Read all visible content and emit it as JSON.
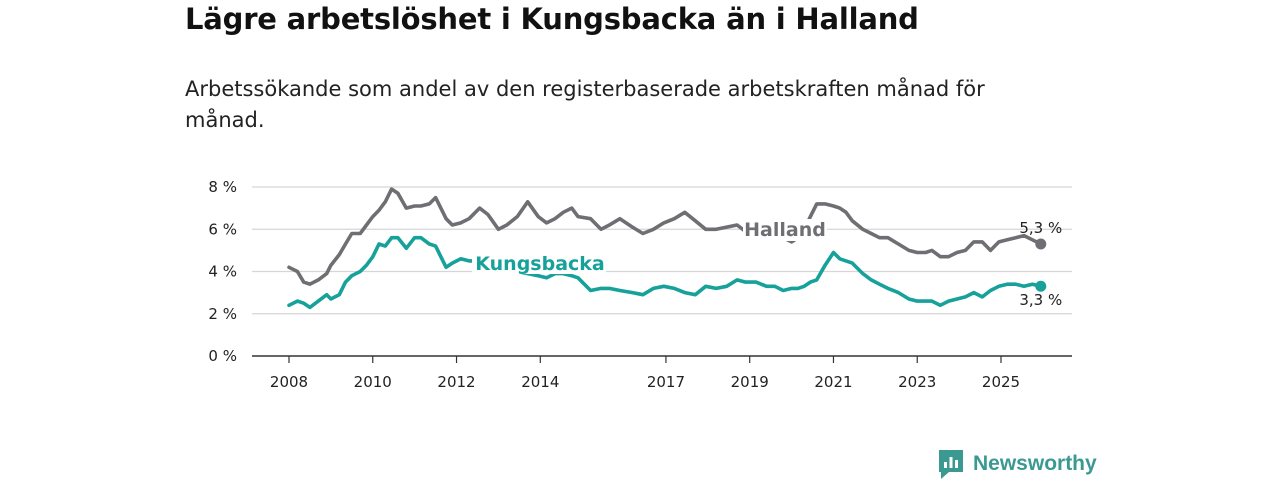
{
  "title": "Lägre arbetslöshet i Kungsbacka än i Halland",
  "subtitle": "Arbetssökande som andel av den registerbaserade arbetskraften månad för månad.",
  "brand": {
    "name": "Newsworthy",
    "color": "#3a9a92",
    "icon": "bar-chart-speech-bubble-icon"
  },
  "chart_data": {
    "type": "line",
    "title": "Lägre arbetslöshet i Kungsbacka än i Halland",
    "subtitle": "Arbetssökande som andel av den registerbaserade arbetskraften månad för månad.",
    "xlabel": "",
    "ylabel": "",
    "xlim": [
      2008.0,
      2026.6
    ],
    "ylim": [
      0,
      8
    ],
    "grid": true,
    "x_ticks": [
      2008,
      2010,
      2012,
      2014,
      2017,
      2019,
      2021,
      2023,
      2025
    ],
    "x_tick_labels": [
      "2008",
      "2010",
      "2012",
      "2014",
      "2017",
      "2019",
      "2021",
      "2023",
      "2025"
    ],
    "y_ticks": [
      0,
      2,
      4,
      6,
      8
    ],
    "y_tick_labels": [
      "0 %",
      "2 %",
      "4 %",
      "6 %",
      "8 %"
    ],
    "series": [
      {
        "name": "Halland",
        "color": "#6f6e73",
        "end_label": "5,3 %",
        "x": [
          2008.0,
          2008.2,
          2008.35,
          2008.5,
          2008.7,
          2008.9,
          2009.0,
          2009.2,
          2009.35,
          2009.5,
          2009.7,
          2009.85,
          2010.0,
          2010.15,
          2010.3,
          2010.45,
          2010.6,
          2010.8,
          2011.0,
          2011.15,
          2011.35,
          2011.5,
          2011.75,
          2011.9,
          2012.1,
          2012.3,
          2012.55,
          2012.75,
          2013.0,
          2013.2,
          2013.45,
          2013.7,
          2013.95,
          2014.15,
          2014.35,
          2014.55,
          2014.75,
          2014.9,
          2015.2,
          2015.45,
          2015.65,
          2015.9,
          2016.2,
          2016.45,
          2016.7,
          2016.95,
          2017.2,
          2017.45,
          2017.7,
          2017.95,
          2018.2,
          2018.45,
          2018.7,
          2018.9,
          2019.15,
          2019.4,
          2019.6,
          2019.8,
          2020.0,
          2020.15,
          2020.3,
          2020.45,
          2020.6,
          2020.8,
          2021.0,
          2021.15,
          2021.3,
          2021.45,
          2021.7,
          2021.9,
          2022.1,
          2022.3,
          2022.55,
          2022.8,
          2023.0,
          2023.2,
          2023.35,
          2023.55,
          2023.75,
          2023.95,
          2024.15,
          2024.35,
          2024.55,
          2024.75,
          2024.95,
          2025.15,
          2025.35,
          2025.55,
          2025.75,
          2025.95
        ],
        "values": [
          4.2,
          4.0,
          3.5,
          3.4,
          3.6,
          3.9,
          4.3,
          4.8,
          5.3,
          5.8,
          5.8,
          6.2,
          6.6,
          6.9,
          7.3,
          7.9,
          7.7,
          7.0,
          7.1,
          7.1,
          7.2,
          7.5,
          6.5,
          6.2,
          6.3,
          6.5,
          7.0,
          6.7,
          6.0,
          6.2,
          6.6,
          7.3,
          6.6,
          6.3,
          6.5,
          6.8,
          7.0,
          6.6,
          6.5,
          6.0,
          6.2,
          6.5,
          6.1,
          5.8,
          6.0,
          6.3,
          6.5,
          6.8,
          6.4,
          6.0,
          6.0,
          6.1,
          6.2,
          5.9,
          5.6,
          5.8,
          5.8,
          5.6,
          5.4,
          5.6,
          6.0,
          6.6,
          7.2,
          7.2,
          7.1,
          7.0,
          6.8,
          6.4,
          6.0,
          5.8,
          5.6,
          5.6,
          5.3,
          5.0,
          4.9,
          4.9,
          5.0,
          4.7,
          4.7,
          4.9,
          5.0,
          5.4,
          5.4,
          5.0,
          5.4,
          5.5,
          5.6,
          5.7,
          5.5,
          5.3
        ]
      },
      {
        "name": "Kungsbacka",
        "color": "#16a19a",
        "end_label": "3,3 %",
        "x": [
          2008.0,
          2008.2,
          2008.35,
          2008.5,
          2008.7,
          2008.9,
          2009.0,
          2009.2,
          2009.35,
          2009.5,
          2009.7,
          2009.85,
          2010.0,
          2010.15,
          2010.3,
          2010.45,
          2010.6,
          2010.8,
          2011.0,
          2011.15,
          2011.35,
          2011.5,
          2011.75,
          2011.9,
          2012.1,
          2012.3,
          2012.55,
          2012.75,
          2013.0,
          2013.2,
          2013.45,
          2013.7,
          2013.95,
          2014.15,
          2014.35,
          2014.55,
          2014.75,
          2014.9,
          2015.2,
          2015.45,
          2015.65,
          2015.9,
          2016.2,
          2016.45,
          2016.7,
          2016.95,
          2017.2,
          2017.45,
          2017.7,
          2017.95,
          2018.2,
          2018.45,
          2018.7,
          2018.9,
          2019.15,
          2019.4,
          2019.6,
          2019.8,
          2020.0,
          2020.15,
          2020.3,
          2020.45,
          2020.6,
          2020.8,
          2021.0,
          2021.15,
          2021.3,
          2021.45,
          2021.7,
          2021.9,
          2022.1,
          2022.3,
          2022.55,
          2022.8,
          2023.0,
          2023.2,
          2023.35,
          2023.55,
          2023.75,
          2023.95,
          2024.15,
          2024.35,
          2024.55,
          2024.75,
          2024.95,
          2025.15,
          2025.35,
          2025.55,
          2025.75,
          2025.95
        ],
        "values": [
          2.4,
          2.6,
          2.5,
          2.3,
          2.6,
          2.9,
          2.7,
          2.9,
          3.5,
          3.8,
          4.0,
          4.3,
          4.7,
          5.3,
          5.2,
          5.6,
          5.6,
          5.1,
          5.6,
          5.6,
          5.3,
          5.2,
          4.2,
          4.4,
          4.6,
          4.5,
          4.5,
          4.2,
          4.0,
          4.2,
          4.0,
          3.9,
          3.8,
          3.7,
          3.9,
          3.9,
          3.8,
          3.7,
          3.1,
          3.2,
          3.2,
          3.1,
          3.0,
          2.9,
          3.2,
          3.3,
          3.2,
          3.0,
          2.9,
          3.3,
          3.2,
          3.3,
          3.6,
          3.5,
          3.5,
          3.3,
          3.3,
          3.1,
          3.2,
          3.2,
          3.3,
          3.5,
          3.6,
          4.3,
          4.9,
          4.6,
          4.5,
          4.4,
          3.9,
          3.6,
          3.4,
          3.2,
          3.0,
          2.7,
          2.6,
          2.6,
          2.6,
          2.4,
          2.6,
          2.7,
          2.8,
          3.0,
          2.8,
          3.1,
          3.3,
          3.4,
          3.4,
          3.3,
          3.4,
          3.3
        ]
      }
    ]
  }
}
